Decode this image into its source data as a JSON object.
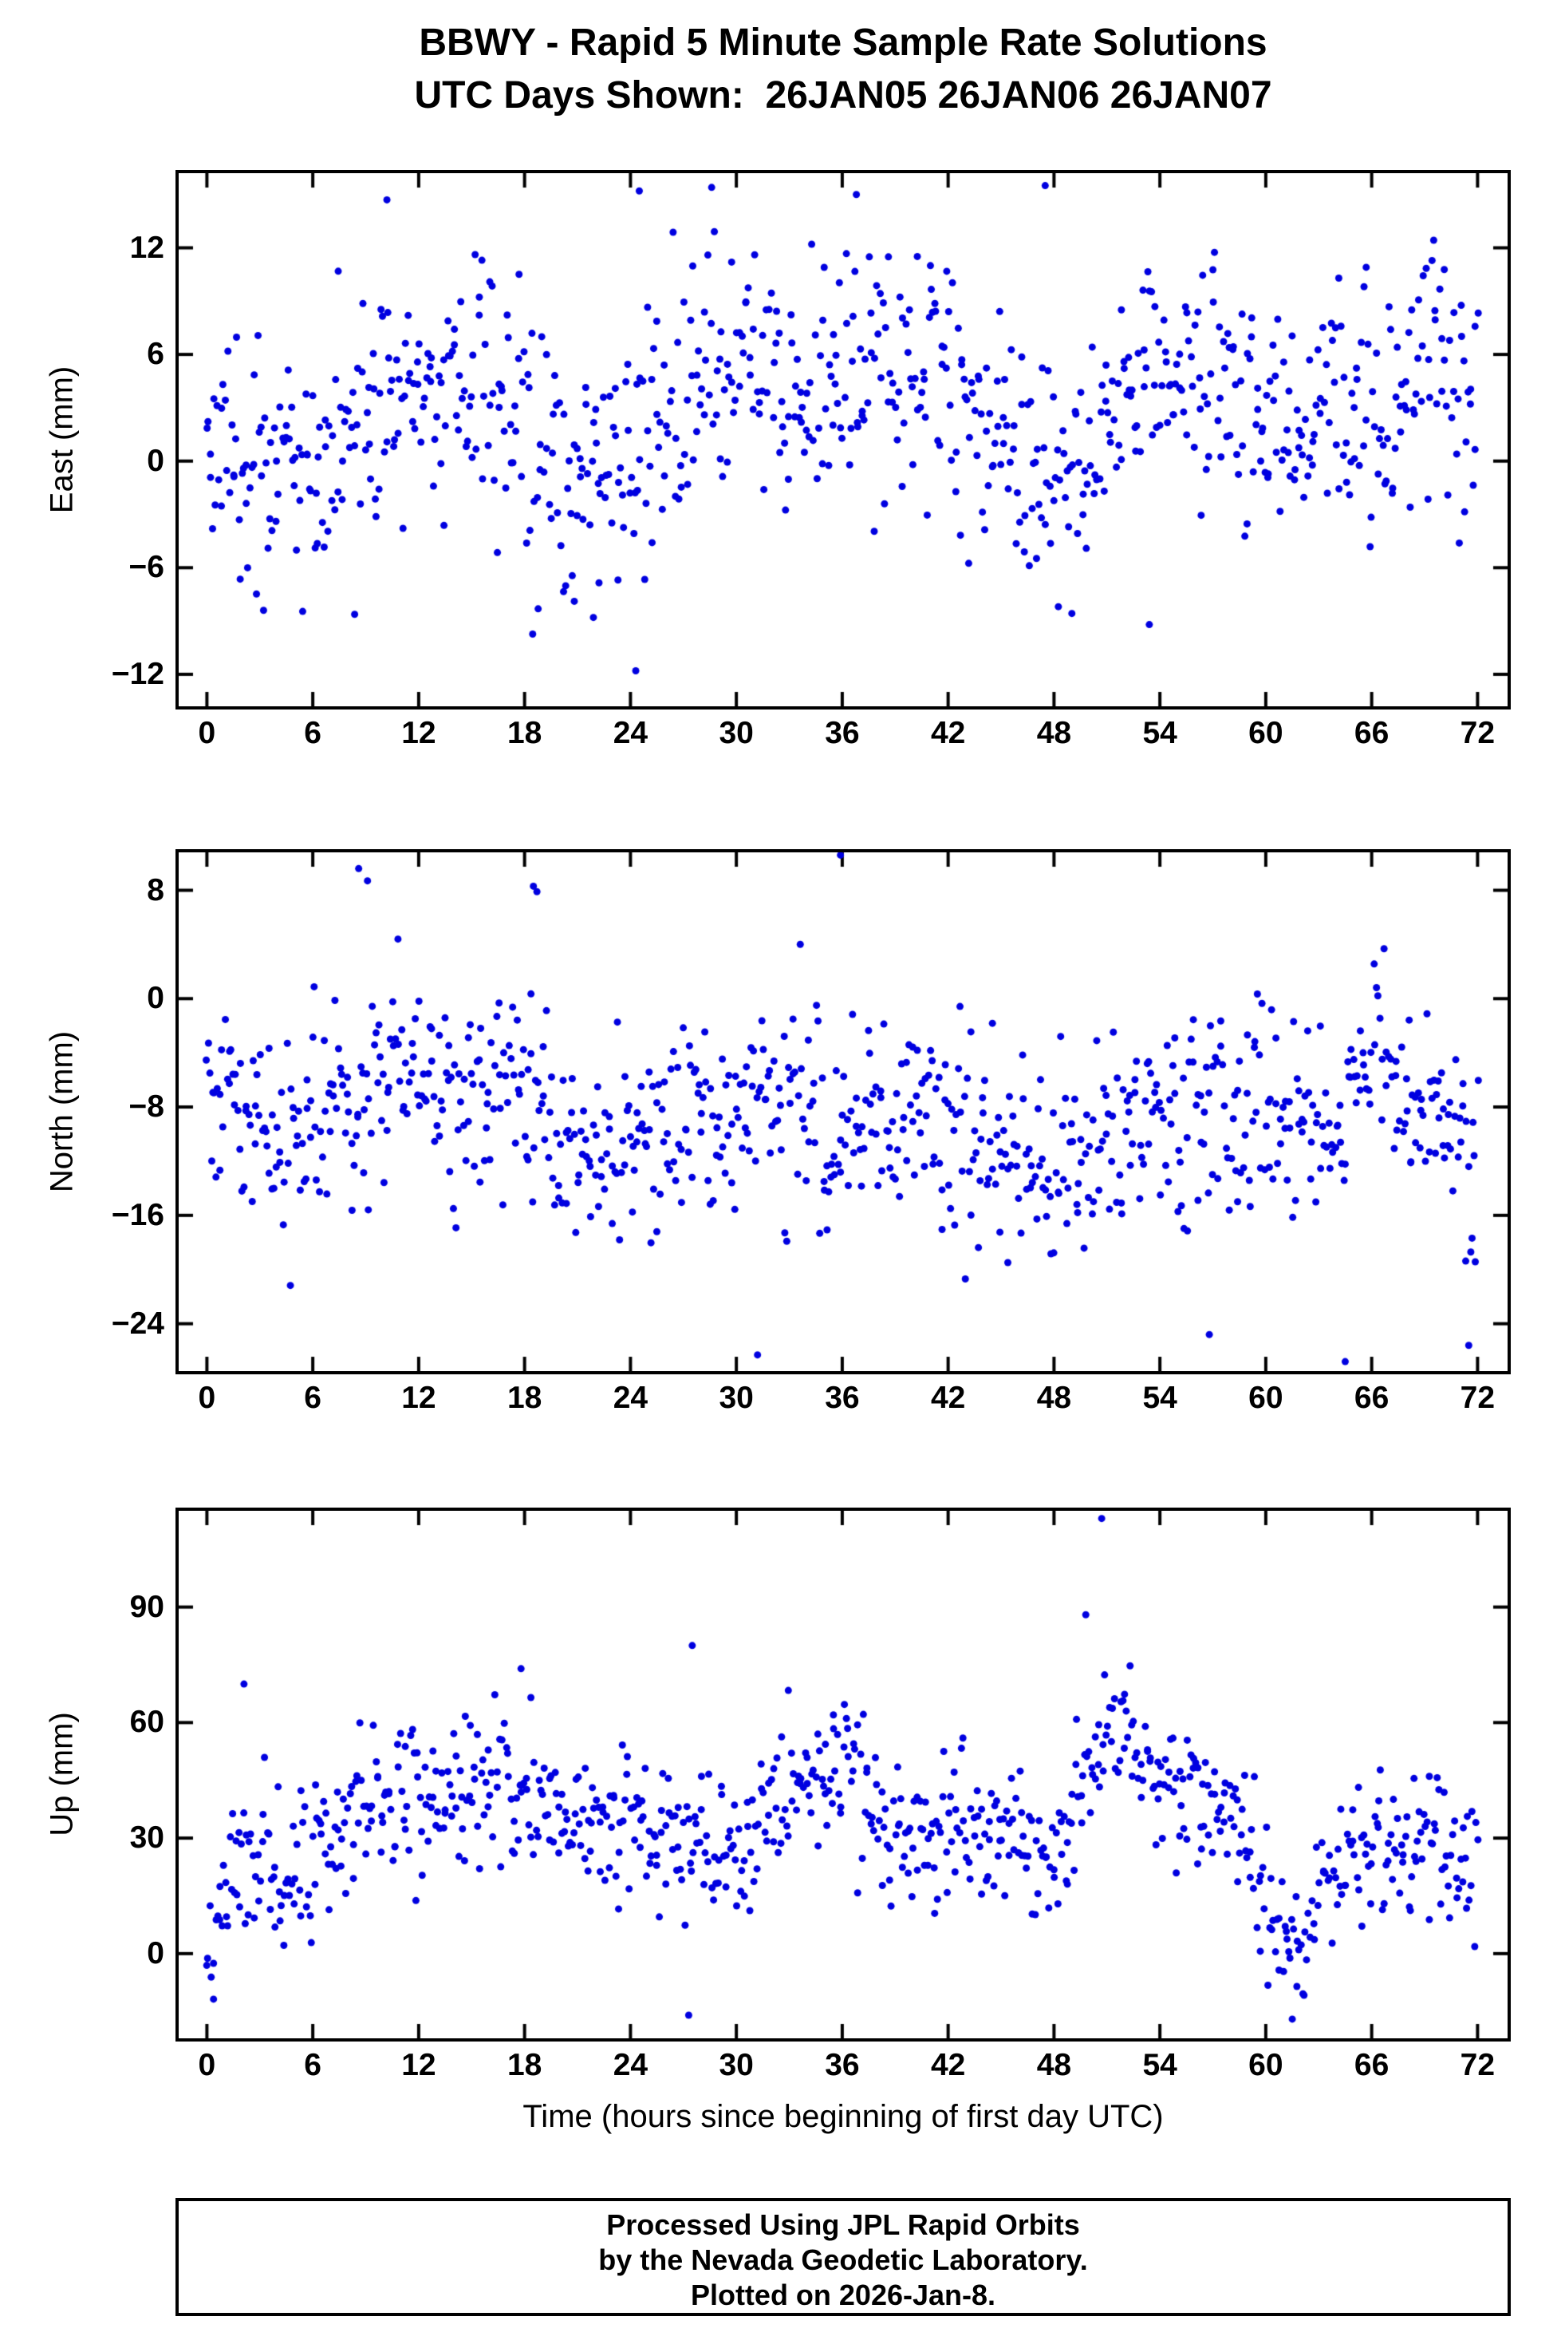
{
  "title": {
    "line1": "BBWY - Rapid 5 Minute Sample Rate Solutions",
    "line2": "UTC Days Shown:  26JAN05 26JAN06 26JAN07"
  },
  "xlabel": "Time (hours since beginning of first day UTC)",
  "footer": {
    "line1": "Processed Using JPL Rapid Orbits",
    "line2": "by the Nevada Geodetic Laboratory.",
    "line3": "Plotted on 2026-Jan-8."
  },
  "marker_color": "#0000e0",
  "axis_color": "#000000",
  "chart_data": [
    {
      "type": "scatter",
      "name": "east",
      "ylabel": "East (mm)",
      "xlim": [
        -1.6,
        73.7
      ],
      "ylim": [
        -13.8,
        16.2
      ],
      "xticks": [
        0,
        6,
        12,
        18,
        24,
        30,
        36,
        42,
        48,
        54,
        60,
        66,
        72
      ],
      "yticks": [
        -12,
        -6,
        0,
        6,
        12
      ],
      "x_range_hours": [
        0,
        72
      ],
      "n_points": 830,
      "seed": 42,
      "sd": 3.4,
      "outlier_prob": 0.05,
      "outlier_scale": 1.8,
      "mean_knots": [
        [
          0,
          1
        ],
        [
          2,
          0
        ],
        [
          4,
          -1
        ],
        [
          6,
          -0.5
        ],
        [
          8,
          1
        ],
        [
          10,
          2.5
        ],
        [
          12,
          3
        ],
        [
          14,
          3.5
        ],
        [
          16,
          4
        ],
        [
          18,
          2.5
        ],
        [
          20,
          -0.5
        ],
        [
          22,
          -1
        ],
        [
          24,
          -0.5
        ],
        [
          25,
          2
        ],
        [
          27,
          5
        ],
        [
          29,
          5.5
        ],
        [
          31,
          4.5
        ],
        [
          33,
          4
        ],
        [
          35,
          4
        ],
        [
          37,
          5
        ],
        [
          39,
          5.5
        ],
        [
          41,
          4.5
        ],
        [
          43,
          3
        ],
        [
          45,
          1
        ],
        [
          47,
          -0.5
        ],
        [
          49,
          -1
        ],
        [
          51,
          1
        ],
        [
          53,
          5
        ],
        [
          55,
          6
        ],
        [
          57,
          5
        ],
        [
          59,
          2
        ],
        [
          61,
          1
        ],
        [
          63,
          2
        ],
        [
          65,
          4
        ],
        [
          67,
          4
        ],
        [
          69,
          4.5
        ],
        [
          71,
          3.5
        ],
        [
          72,
          3
        ]
      ],
      "extra_points": [
        [
          24.3,
          -11.8
        ],
        [
          24.5,
          15.2
        ],
        [
          28.6,
          15.4
        ],
        [
          47.5,
          15.5
        ],
        [
          10.2,
          14.7
        ],
        [
          36.8,
          15.0
        ],
        [
          53.4,
          -9.2
        ],
        [
          21.9,
          -8.8
        ]
      ]
    },
    {
      "type": "scatter",
      "name": "north",
      "ylabel": "North (mm)",
      "xlim": [
        -1.6,
        73.7
      ],
      "ylim": [
        -27.5,
        10.8
      ],
      "xticks": [
        0,
        6,
        12,
        18,
        24,
        30,
        36,
        42,
        48,
        54,
        60,
        66,
        72
      ],
      "yticks": [
        -24,
        -16,
        -8,
        0,
        8
      ],
      "x_range_hours": [
        0,
        72
      ],
      "n_points": 830,
      "seed": 1337,
      "sd": 3.6,
      "outlier_prob": 0.05,
      "outlier_scale": 1.8,
      "mean_knots": [
        [
          0,
          -5
        ],
        [
          2,
          -8
        ],
        [
          4,
          -10
        ],
        [
          6,
          -9
        ],
        [
          8,
          -7.5
        ],
        [
          10,
          -6
        ],
        [
          12,
          -5.5
        ],
        [
          14,
          -6
        ],
        [
          16,
          -7
        ],
        [
          18,
          -5
        ],
        [
          20,
          -9
        ],
        [
          22,
          -10
        ],
        [
          24,
          -10.5
        ],
        [
          26,
          -9
        ],
        [
          28,
          -8
        ],
        [
          30,
          -9
        ],
        [
          32,
          -7.5
        ],
        [
          34,
          -8
        ],
        [
          36,
          -9
        ],
        [
          38,
          -8
        ],
        [
          40,
          -9
        ],
        [
          42,
          -10
        ],
        [
          44,
          -11
        ],
        [
          46,
          -12
        ],
        [
          48,
          -12
        ],
        [
          50,
          -11
        ],
        [
          52,
          -9.5
        ],
        [
          54,
          -8
        ],
        [
          56,
          -8
        ],
        [
          58,
          -8
        ],
        [
          60,
          -8.5
        ],
        [
          62,
          -9
        ],
        [
          64,
          -9
        ],
        [
          66,
          -4
        ],
        [
          68,
          -7
        ],
        [
          70,
          -9
        ],
        [
          72,
          -13
        ]
      ],
      "extra_points": [
        [
          31.2,
          -26.3
        ],
        [
          35.9,
          10.6
        ],
        [
          56.8,
          -24.8
        ],
        [
          64.5,
          -26.8
        ],
        [
          8.6,
          9.6
        ],
        [
          18.5,
          8.3
        ],
        [
          18.7,
          7.9
        ],
        [
          9.1,
          8.7
        ],
        [
          71.5,
          -25.6
        ]
      ]
    },
    {
      "type": "scatter",
      "name": "up",
      "ylabel": "Up (mm)",
      "xlim": [
        -1.6,
        73.7
      ],
      "ylim": [
        -22,
        115
      ],
      "xticks": [
        0,
        6,
        12,
        18,
        24,
        30,
        36,
        42,
        48,
        54,
        60,
        66,
        72
      ],
      "yticks": [
        0,
        30,
        60,
        90
      ],
      "x_range_hours": [
        0,
        72
      ],
      "n_points": 830,
      "seed": 2025,
      "sd": 9,
      "outlier_prob": 0.04,
      "outlier_scale": 1.6,
      "mean_knots": [
        [
          0,
          2
        ],
        [
          1,
          12
        ],
        [
          2,
          28
        ],
        [
          3,
          30
        ],
        [
          4,
          24
        ],
        [
          5,
          22
        ],
        [
          6,
          26
        ],
        [
          8,
          34
        ],
        [
          10,
          38
        ],
        [
          12,
          40
        ],
        [
          14,
          44
        ],
        [
          16,
          46
        ],
        [
          18,
          42
        ],
        [
          20,
          36
        ],
        [
          22,
          36
        ],
        [
          24,
          32
        ],
        [
          26,
          34
        ],
        [
          28,
          30
        ],
        [
          30,
          26
        ],
        [
          32,
          40
        ],
        [
          34,
          44
        ],
        [
          36,
          46
        ],
        [
          38,
          36
        ],
        [
          40,
          30
        ],
        [
          42,
          34
        ],
        [
          44,
          36
        ],
        [
          46,
          30
        ],
        [
          48,
          24
        ],
        [
          50,
          48
        ],
        [
          51,
          58
        ],
        [
          52,
          60
        ],
        [
          53,
          56
        ],
        [
          54,
          46
        ],
        [
          55,
          42
        ],
        [
          56,
          44
        ],
        [
          57,
          40
        ],
        [
          58,
          36
        ],
        [
          59,
          28
        ],
        [
          60,
          12
        ],
        [
          61,
          4
        ],
        [
          62,
          4
        ],
        [
          63,
          18
        ],
        [
          64,
          22
        ],
        [
          66,
          27
        ],
        [
          68,
          30
        ],
        [
          70,
          28
        ],
        [
          72,
          18
        ]
      ],
      "extra_points": [
        [
          50.7,
          113
        ],
        [
          49.8,
          88
        ],
        [
          27.3,
          -16
        ],
        [
          61.5,
          -17
        ],
        [
          2.1,
          70
        ],
        [
          17.8,
          74
        ],
        [
          35.5,
          62
        ],
        [
          27.5,
          80
        ]
      ]
    }
  ]
}
